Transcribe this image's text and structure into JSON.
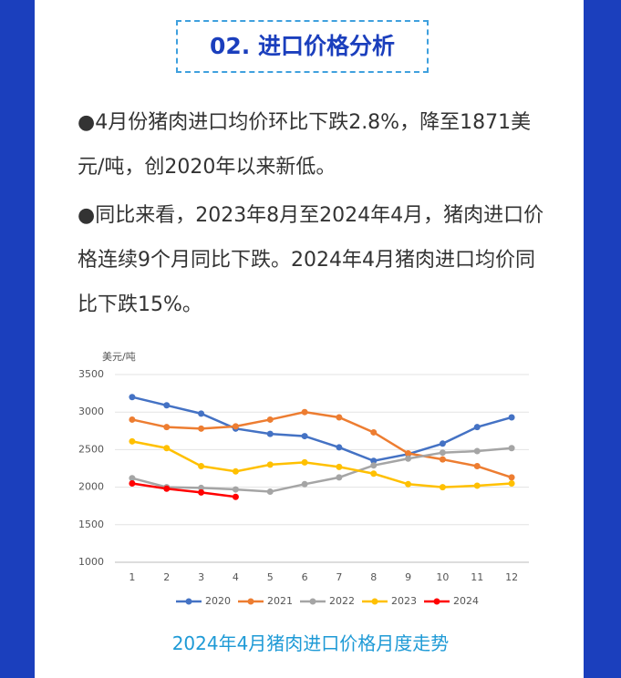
{
  "header": {
    "title": "02. 进口价格分析"
  },
  "paragraphs": [
    "●4月份猪肉进口均价环比下跌2.8%，降至1871美元/吨，创2020年以来新低。",
    "●同比来看，2023年8月至2024年4月，猪肉进口价格连续9个月同比下跌。2024年4月猪肉进口均价同比下跌15%。"
  ],
  "chart_data": {
    "type": "line",
    "y_label": "美元/吨",
    "categories": [
      "1",
      "2",
      "3",
      "4",
      "5",
      "6",
      "7",
      "8",
      "9",
      "10",
      "11",
      "12"
    ],
    "series": [
      {
        "name": "2020",
        "color": "#4472c4",
        "values": [
          3200,
          3090,
          2980,
          2780,
          2710,
          2680,
          2530,
          2350,
          2440,
          2580,
          2800,
          2930
        ]
      },
      {
        "name": "2021",
        "color": "#ed7d31",
        "values": [
          2900,
          2800,
          2780,
          2810,
          2900,
          3000,
          2930,
          2730,
          2450,
          2370,
          2280,
          2130
        ]
      },
      {
        "name": "2022",
        "color": "#a5a5a5",
        "values": [
          2120,
          2000,
          1990,
          1970,
          1940,
          2040,
          2130,
          2290,
          2380,
          2460,
          2480,
          2520
        ]
      },
      {
        "name": "2023",
        "color": "#ffc000",
        "values": [
          2610,
          2520,
          2280,
          2210,
          2300,
          2330,
          2270,
          2180,
          2040,
          2000,
          2020,
          2050
        ]
      },
      {
        "name": "2024",
        "color": "#ff0000",
        "values": [
          2050,
          1980,
          1930,
          1871,
          null,
          null,
          null,
          null,
          null,
          null,
          null,
          null
        ]
      }
    ],
    "ylim": [
      1000,
      3500
    ],
    "yticks": [
      1000,
      1500,
      2000,
      2500,
      3000,
      3500
    ],
    "grid": true,
    "legend": "bottom"
  },
  "caption": "2024年4月猪肉进口价格月度走势"
}
